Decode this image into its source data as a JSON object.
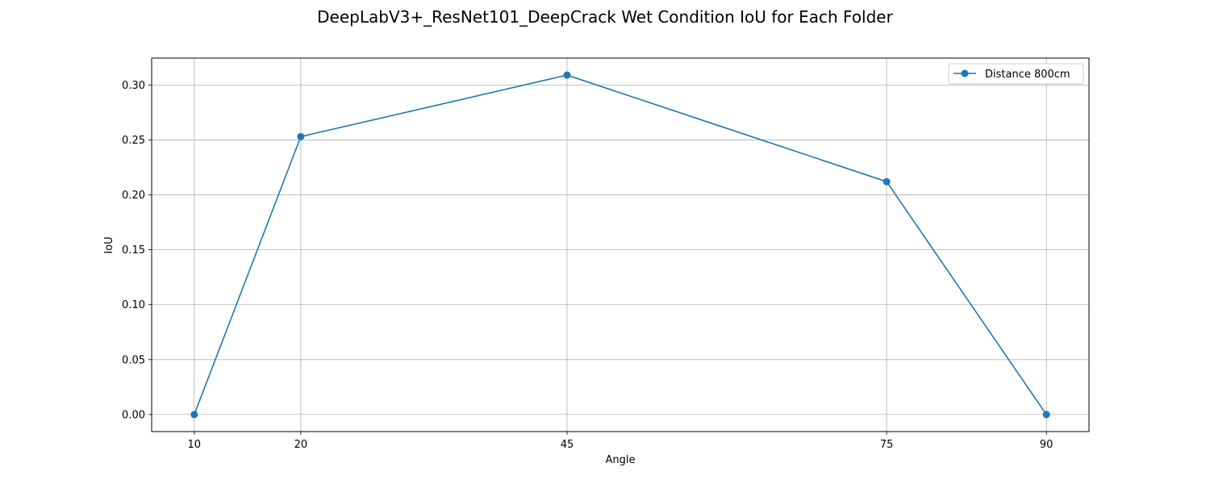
{
  "chart_data": {
    "type": "line",
    "title": "DeepLabV3+_ResNet101_DeepCrack Wet Condition IoU for Each Folder",
    "xlabel": "Angle",
    "ylabel": "IoU",
    "x_ticks": [
      "10",
      "20",
      "45",
      "75",
      "90"
    ],
    "y_ticks": [
      "0.00",
      "0.05",
      "0.10",
      "0.15",
      "0.20",
      "0.25",
      "0.30"
    ],
    "xlim": [
      6,
      94
    ],
    "ylim": [
      -0.0155,
      0.3245
    ],
    "grid": true,
    "legend_position": "top-right",
    "series": [
      {
        "name": "Distance 800cm",
        "color": "#1f77b4",
        "marker": "circle",
        "x": [
          10,
          20,
          45,
          75,
          90
        ],
        "y": [
          0.0,
          0.253,
          0.309,
          0.212,
          0.0
        ]
      }
    ]
  }
}
